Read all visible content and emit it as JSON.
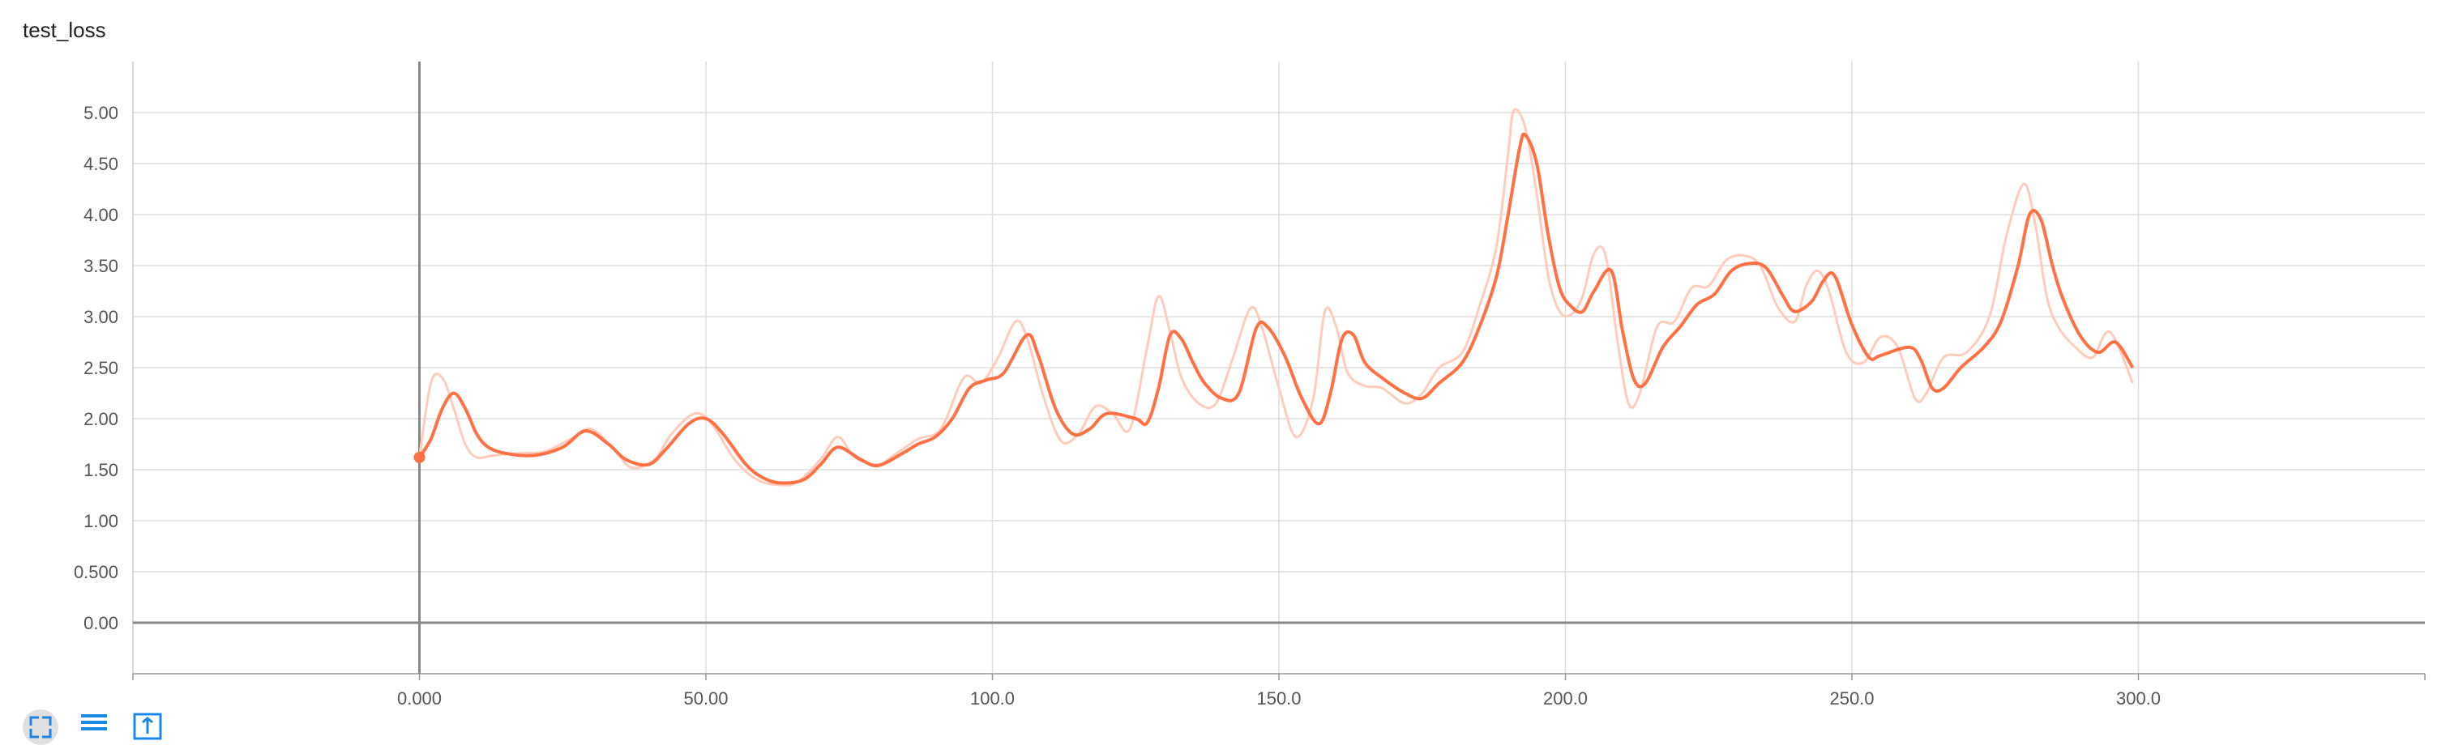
{
  "chart_data": {
    "type": "line",
    "title": "test_loss",
    "xlim": [
      -50,
      350
    ],
    "ylim": [
      -0.5,
      5.5
    ],
    "x_ticks": [
      0,
      50,
      100,
      150,
      200,
      250,
      300
    ],
    "x_tick_labels": [
      "0.000",
      "50.00",
      "100.0",
      "150.0",
      "200.0",
      "250.0",
      "300.0"
    ],
    "y_ticks": [
      0,
      0.5,
      1,
      1.5,
      2,
      2.5,
      3,
      3.5,
      4,
      4.5,
      5
    ],
    "y_tick_labels": [
      "0.00",
      "0.500",
      "1.00",
      "1.50",
      "2.00",
      "2.50",
      "3.00",
      "3.50",
      "4.00",
      "4.50",
      "5.00"
    ],
    "grid": true,
    "series": [
      {
        "role": "smoothed",
        "color": "#ff7043",
        "x": [
          0,
          2,
          4,
          6,
          8,
          10,
          12,
          15,
          20,
          25,
          29,
          33,
          36,
          40,
          43,
          47,
          50,
          53,
          57,
          60,
          63,
          67,
          70,
          73,
          77,
          80,
          84,
          87,
          90,
          93,
          96,
          99,
          102,
          106,
          108,
          111,
          114,
          117,
          120,
          125,
          127,
          129,
          131,
          133,
          135,
          137,
          140,
          143,
          146,
          148,
          151,
          154,
          157,
          159,
          161,
          163,
          165,
          168,
          172,
          175,
          178,
          182,
          185,
          188,
          190,
          192,
          193,
          195,
          197,
          199,
          201,
          203,
          205,
          208,
          210,
          212,
          214,
          217,
          220,
          223,
          226,
          229,
          232,
          235,
          238,
          240,
          243,
          245,
          247,
          250,
          253,
          255,
          260,
          262,
          264,
          266,
          269,
          273,
          276,
          279,
          281,
          283,
          285,
          287,
          290,
          293,
          296,
          299
        ],
        "y": [
          1.62,
          1.8,
          2.1,
          2.25,
          2.1,
          1.85,
          1.72,
          1.66,
          1.64,
          1.72,
          1.88,
          1.75,
          1.6,
          1.55,
          1.7,
          1.95,
          2.0,
          1.85,
          1.55,
          1.42,
          1.37,
          1.4,
          1.55,
          1.72,
          1.6,
          1.54,
          1.65,
          1.75,
          1.82,
          2.0,
          2.3,
          2.38,
          2.45,
          2.82,
          2.62,
          2.1,
          1.85,
          1.9,
          2.05,
          2.0,
          1.96,
          2.3,
          2.82,
          2.78,
          2.55,
          2.35,
          2.2,
          2.25,
          2.88,
          2.9,
          2.62,
          2.2,
          1.95,
          2.25,
          2.78,
          2.82,
          2.55,
          2.4,
          2.25,
          2.2,
          2.35,
          2.55,
          2.9,
          3.4,
          4.0,
          4.65,
          4.78,
          4.5,
          3.8,
          3.28,
          3.1,
          3.05,
          3.25,
          3.45,
          2.85,
          2.38,
          2.35,
          2.7,
          2.9,
          3.12,
          3.22,
          3.45,
          3.52,
          3.48,
          3.2,
          3.05,
          3.15,
          3.35,
          3.4,
          2.92,
          2.6,
          2.62,
          2.7,
          2.58,
          2.3,
          2.3,
          2.5,
          2.7,
          2.95,
          3.5,
          4.0,
          3.95,
          3.5,
          3.15,
          2.8,
          2.65,
          2.75,
          2.5
        ]
      },
      {
        "role": "raw",
        "color": "#ffccbc",
        "x": [
          0,
          2,
          4,
          6,
          8,
          10,
          13,
          17,
          22,
          27,
          30,
          34,
          37,
          41,
          44,
          48,
          51,
          55,
          59,
          63,
          66,
          70,
          73,
          76,
          80,
          83,
          87,
          91,
          95,
          98,
          101,
          104,
          106,
          109,
          112,
          115,
          118,
          121,
          124,
          127,
          129,
          131,
          133,
          136,
          139,
          142,
          145,
          147,
          150,
          153,
          156,
          158,
          160,
          162,
          165,
          168,
          172,
          175,
          178,
          182,
          185,
          188,
          190,
          191,
          193,
          195,
          197,
          199,
          201,
          203,
          205,
          207,
          209,
          211,
          213,
          216,
          219,
          222,
          225,
          228,
          231,
          234,
          237,
          240,
          242,
          244,
          246,
          249,
          252,
          255,
          258,
          261,
          263,
          266,
          270,
          274,
          277,
          280,
          282,
          284,
          286,
          289,
          292,
          295,
          299
        ],
        "y": [
          1.62,
          2.35,
          2.4,
          2.1,
          1.75,
          1.62,
          1.64,
          1.66,
          1.68,
          1.82,
          1.9,
          1.7,
          1.52,
          1.6,
          1.85,
          2.05,
          1.95,
          1.6,
          1.4,
          1.35,
          1.38,
          1.6,
          1.82,
          1.62,
          1.55,
          1.65,
          1.8,
          1.9,
          2.4,
          2.35,
          2.6,
          2.95,
          2.8,
          2.2,
          1.78,
          1.85,
          2.12,
          2.05,
          1.9,
          2.7,
          3.2,
          2.85,
          2.4,
          2.15,
          2.15,
          2.6,
          3.08,
          2.9,
          2.3,
          1.82,
          2.2,
          3.05,
          2.9,
          2.45,
          2.32,
          2.3,
          2.15,
          2.25,
          2.5,
          2.65,
          3.1,
          3.7,
          4.6,
          5.02,
          4.85,
          4.2,
          3.4,
          3.05,
          3.02,
          3.2,
          3.62,
          3.6,
          2.8,
          2.15,
          2.25,
          2.9,
          2.95,
          3.28,
          3.3,
          3.55,
          3.6,
          3.5,
          3.1,
          2.95,
          3.3,
          3.45,
          3.25,
          2.65,
          2.55,
          2.8,
          2.7,
          2.2,
          2.25,
          2.6,
          2.65,
          3.0,
          3.8,
          4.3,
          3.9,
          3.2,
          2.9,
          2.7,
          2.6,
          2.85,
          2.35
        ]
      }
    ],
    "start_marker": {
      "x": 0,
      "y": 1.62
    }
  },
  "toolbar": {
    "icons": [
      "expand-icon",
      "list-icon",
      "fit-icon"
    ],
    "accent": "#1e88e5"
  }
}
